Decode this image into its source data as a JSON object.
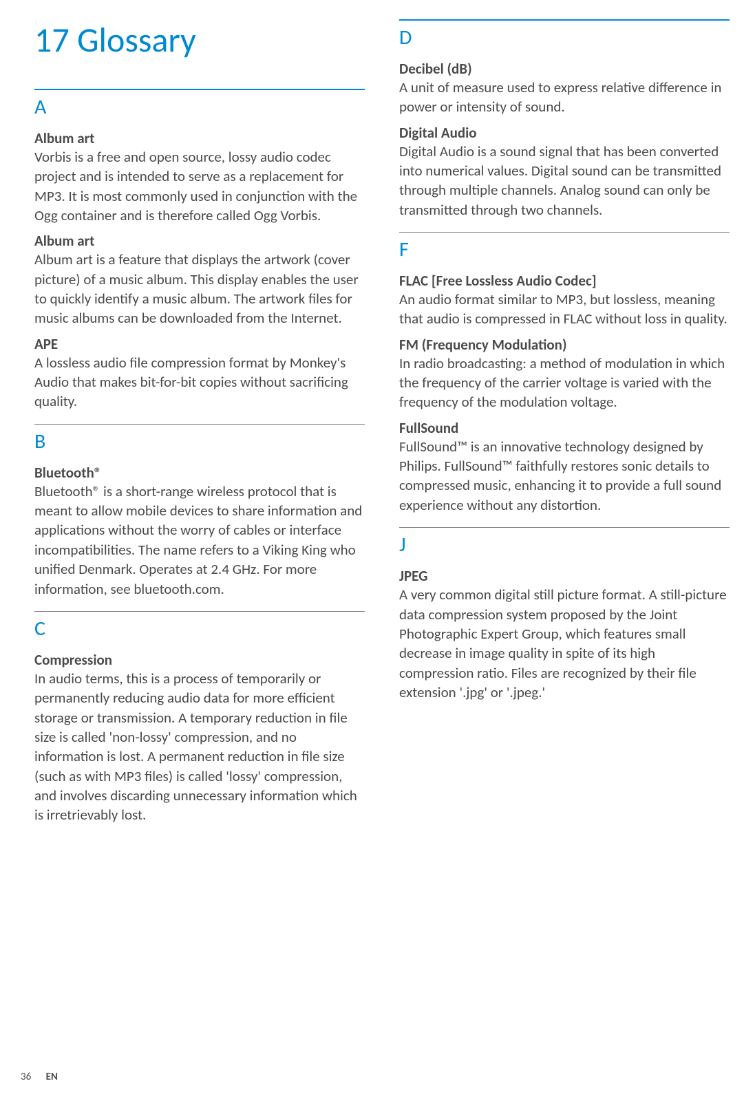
{
  "chapter_title": "17 Glossary",
  "colors": {
    "accent": "#0089cf",
    "body_text": "#4a4a4a",
    "divider_gray": "#808080",
    "background": "#ffffff"
  },
  "typography": {
    "chapter_fontsize": 50,
    "letter_fontsize": 30,
    "term_fontsize": 21,
    "definition_fontsize": 21,
    "footer_fontsize": 15
  },
  "left": {
    "A": {
      "letter": "A",
      "entries": [
        {
          "term": "Album art",
          "def": "Vorbis is a free and open source, lossy audio codec project and is intended to serve as a replacement for MP3. It is most commonly used in conjunction with the Ogg container and is therefore called Ogg Vorbis."
        },
        {
          "term": "Album art",
          "def": "Album art is a feature that displays the artwork (cover picture) of a music album. This display enables the user to quickly identify a music album. The artwork files for music albums can be downloaded from the Internet."
        },
        {
          "term": "APE",
          "def": "A lossless audio file compression format by Monkey's Audio that makes bit-for-bit copies without sacrificing quality."
        }
      ]
    },
    "B": {
      "letter": "B",
      "entries": [
        {
          "term": "Bluetooth®",
          "def": "Bluetooth® is a short-range wireless protocol that is meant to allow mobile devices to share information and applications without the worry of cables or interface incompatibilities. The name refers to a Viking King who unified Denmark. Operates at 2.4 GHz. For more information, see bluetooth.com."
        }
      ]
    },
    "C": {
      "letter": "C",
      "entries": [
        {
          "term": "Compression",
          "def": "In audio terms, this is a process of temporarily or permanently reducing audio data for more efficient storage or transmission. A temporary reduction in file size is called 'non-lossy' compression, and no information is lost. A permanent reduction in file size (such as with MP3 files) is called 'lossy' compression, and involves discarding unnecessary information which is irretrievably lost."
        }
      ]
    }
  },
  "right": {
    "D": {
      "letter": "D",
      "entries": [
        {
          "term": "Decibel (dB)",
          "def": "A unit of measure used to express relative difference in power or intensity of sound."
        },
        {
          "term": "Digital Audio",
          "def": "Digital Audio is a sound signal that has been converted into numerical values. Digital sound can be transmitted through multiple channels. Analog sound can only be transmitted through two channels."
        }
      ]
    },
    "F": {
      "letter": "F",
      "entries": [
        {
          "term": "FLAC [Free Lossless Audio Codec]",
          "def": "An audio format similar to MP3, but lossless, meaning that audio is compressed in FLAC without loss in quality."
        },
        {
          "term": "FM (Frequency Modulation)",
          "def": "In radio broadcasting: a method of modulation in which the frequency of the carrier voltage is varied with the frequency of the modulation voltage."
        },
        {
          "term": "FullSound",
          "def": "FullSound™ is an innovative technology designed by Philips. FullSound™ faithfully restores sonic details to compressed music, enhancing it to provide a full sound experience without any distortion."
        }
      ]
    },
    "J": {
      "letter": "J",
      "entries": [
        {
          "term": "JPEG",
          "def": "A very common digital still picture format. A still-picture data compression system proposed by the Joint Photographic Expert Group, which features small decrease in image quality in spite of its high compression ratio. Files are recognized by their file extension '.jpg' or '.jpeg.'"
        }
      ]
    }
  },
  "footer": {
    "page": "36",
    "lang": "EN"
  }
}
